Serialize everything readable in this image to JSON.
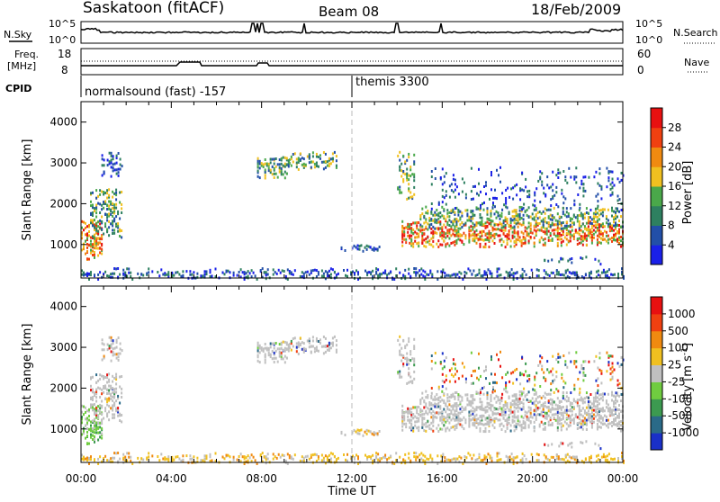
{
  "header": {
    "site": "Saskatoon (fitACF)",
    "beam": "Beam 08",
    "date": "18/Feb/2009"
  },
  "noise_panel": {
    "left_label": "N.Sky",
    "right_label": "N.Search",
    "tick_top": "10^5",
    "tick_bottom": "10^0"
  },
  "freq_panel": {
    "left_label_1": "Freq.",
    "left_label_2": "[MHz]",
    "right_label": "Nave",
    "left_ticks": [
      "18",
      "8"
    ],
    "right_ticks": [
      "60",
      "0"
    ]
  },
  "cpid_panel": {
    "label": "CPID",
    "modes": [
      {
        "text": "normalsound (fast) -157",
        "start_hour": 0
      },
      {
        "text": "themis 3300",
        "start_hour": 12
      }
    ]
  },
  "x_axis": {
    "label": "Time UT",
    "ticks": [
      "00:00",
      "04:00",
      "08:00",
      "12:00",
      "16:00",
      "20:00",
      "00:00"
    ]
  },
  "y_axis": {
    "label": "Slant Range [km]",
    "ticks": [
      "1000",
      "2000",
      "3000",
      "4000"
    ]
  },
  "power_scale": {
    "label": "Power [dB]",
    "ticks": [
      "4",
      "8",
      "12",
      "16",
      "20",
      "24",
      "28"
    ],
    "colors": [
      "#1a20e8",
      "#224fa8",
      "#2e8060",
      "#4aa84a",
      "#f0c020",
      "#f08a10",
      "#f04010",
      "#e81010"
    ]
  },
  "velocity_scale": {
    "label": "Velocity [m s^-1]",
    "label_main": "Velocity [m s",
    "label_exp": "-1",
    "label_end": "]",
    "ticks": [
      "1000",
      "500",
      "100",
      "25",
      "-25",
      "-100",
      "-500",
      "-1000"
    ],
    "colors": [
      "#1a30c8",
      "#2a6a88",
      "#3c9a50",
      "#70cc40",
      "#c0c0c0",
      "#f0c020",
      "#f08a10",
      "#f04010",
      "#e81010"
    ]
  },
  "chart_data": {
    "type": "heatmap",
    "x_range_hours": [
      0,
      24
    ],
    "y_range_km": [
      180,
      4500
    ],
    "panels": [
      "Power",
      "Velocity"
    ]
  }
}
